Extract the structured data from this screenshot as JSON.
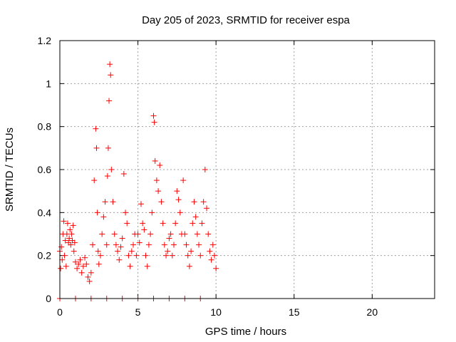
{
  "chart_data": {
    "type": "scatter",
    "title": "Day 205 of 2023, SRMTID for receiver espa",
    "xlabel": "GPS time / hours",
    "ylabel": "SRMTID / TECUs",
    "xlim": [
      0,
      24
    ],
    "ylim": [
      0,
      1.2
    ],
    "x_ticks": [
      0,
      5,
      10,
      15,
      20
    ],
    "y_ticks": [
      0,
      0.2,
      0.4,
      0.6,
      0.8,
      1,
      1.2
    ],
    "x_tick_labels": [
      "0",
      "5",
      "10",
      "15",
      "20"
    ],
    "y_tick_labels": [
      "0",
      "0.2",
      "0.4",
      "0.6",
      "0.8",
      "1",
      "1.2"
    ],
    "grid": true,
    "marker": "plus",
    "color": "#ff0000",
    "series": [
      {
        "x": [
          0.0,
          0.05,
          0.1,
          0.15,
          0.2,
          0.25,
          0.3,
          0.35,
          0.4,
          0.45,
          0.5,
          0.55,
          0.6,
          0.65,
          0.7,
          0.75,
          0.8,
          0.85,
          0.9,
          0.95,
          1.0,
          1.1,
          1.2,
          1.3,
          1.4,
          1.5,
          1.6,
          1.7,
          1.8,
          1.9,
          2.0,
          2.1,
          2.2,
          2.3,
          2.35,
          2.4,
          2.45,
          2.5,
          2.6,
          2.7,
          2.8,
          2.9,
          3.0,
          3.05,
          3.1,
          3.15,
          3.2,
          3.25,
          3.3,
          3.4,
          3.5,
          3.6,
          3.7,
          3.8,
          3.9,
          4.0,
          4.1,
          4.2,
          4.3,
          4.4,
          4.5,
          4.6,
          4.7,
          4.8,
          4.9,
          5.0,
          5.1,
          5.2,
          5.3,
          5.4,
          5.5,
          5.6,
          5.7,
          5.8,
          5.9,
          6.0,
          6.05,
          6.1,
          6.2,
          6.3,
          6.4,
          6.5,
          6.6,
          6.7,
          6.8,
          6.9,
          7.0,
          7.1,
          7.2,
          7.3,
          7.4,
          7.5,
          7.6,
          7.7,
          7.8,
          7.9,
          8.0,
          8.1,
          8.2,
          8.3,
          8.4,
          8.5,
          8.6,
          8.7,
          8.8,
          8.9,
          9.0,
          9.1,
          9.2,
          9.3,
          9.4,
          9.5,
          9.6,
          9.7,
          9.8,
          9.9,
          10.0
        ],
        "y": [
          0.22,
          0.14,
          0.24,
          0.18,
          0.3,
          0.36,
          0.2,
          0.27,
          0.15,
          0.3,
          0.35,
          0.26,
          0.28,
          0.32,
          0.25,
          0.3,
          0.27,
          0.34,
          0.22,
          0.26,
          0.17,
          0.14,
          0.16,
          0.18,
          0.12,
          0.15,
          0.19,
          0.16,
          0.1,
          0.08,
          0.12,
          0.25,
          0.55,
          0.79,
          0.7,
          0.4,
          0.22,
          0.16,
          0.2,
          0.3,
          0.38,
          0.45,
          0.25,
          0.57,
          0.7,
          0.92,
          1.09,
          1.04,
          0.6,
          0.45,
          0.3,
          0.25,
          0.22,
          0.18,
          0.24,
          0.28,
          0.58,
          0.4,
          0.35,
          0.2,
          0.15,
          0.22,
          0.25,
          0.3,
          0.2,
          0.3,
          0.26,
          0.44,
          0.35,
          0.32,
          0.2,
          0.15,
          0.25,
          0.3,
          0.4,
          0.85,
          0.82,
          0.64,
          0.55,
          0.5,
          0.62,
          0.45,
          0.35,
          0.25,
          0.2,
          0.22,
          0.28,
          0.3,
          0.2,
          0.25,
          0.35,
          0.5,
          0.46,
          0.4,
          0.3,
          0.55,
          0.3,
          0.25,
          0.2,
          0.15,
          0.22,
          0.35,
          0.45,
          0.38,
          0.3,
          0.25,
          0.2,
          0.35,
          0.45,
          0.6,
          0.42,
          0.3,
          0.22,
          0.18,
          0.25,
          0.2,
          0.14
        ]
      },
      {
        "x": [
          0.0,
          1.0,
          2.0,
          3.0,
          4.0,
          5.0,
          6.0,
          7.0,
          8.0,
          9.0
        ],
        "y": [
          0,
          0,
          0,
          0,
          0,
          0,
          0,
          0,
          0,
          0
        ]
      }
    ]
  }
}
